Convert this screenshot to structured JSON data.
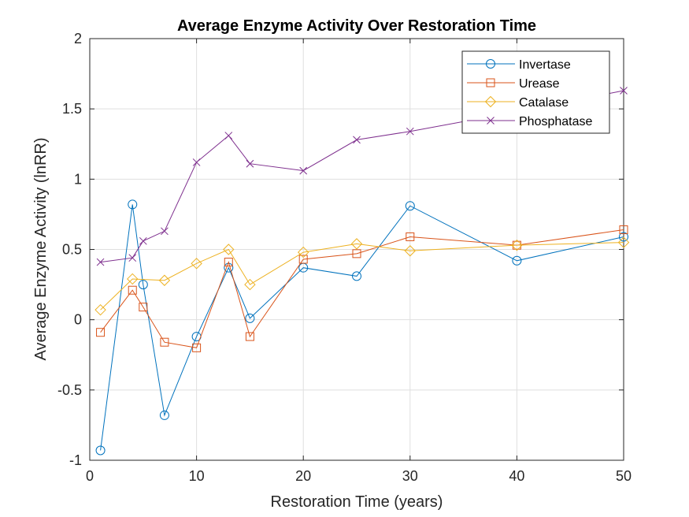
{
  "chart_data": {
    "type": "line",
    "title": "Average Enzyme Activity Over Restoration Time",
    "xlabel": "Restoration Time (years)",
    "ylabel": "Average Enzyme Activity (lnRR)",
    "xlim": [
      0,
      50
    ],
    "ylim": [
      -1,
      2
    ],
    "xticks": [
      0,
      10,
      20,
      30,
      40,
      50
    ],
    "xtick_labels": [
      "0",
      "10",
      "20",
      "30",
      "40",
      "50"
    ],
    "yticks": [
      -1,
      -0.5,
      0,
      0.5,
      1,
      1.5,
      2
    ],
    "ytick_labels": [
      "-1",
      "-0.5",
      "0",
      "0.5",
      "1",
      "1.5",
      "2"
    ],
    "grid": true,
    "legend_position": "top-right",
    "series": [
      {
        "name": "Invertase",
        "color": "#0072BD",
        "marker": "circle",
        "x": [
          1,
          4,
          5,
          7,
          10,
          13,
          15,
          20,
          25,
          30,
          40,
          50
        ],
        "y": [
          -0.93,
          0.82,
          0.25,
          -0.68,
          -0.12,
          0.37,
          0.01,
          0.37,
          0.31,
          0.81,
          0.42,
          0.59
        ]
      },
      {
        "name": "Urease",
        "color": "#D95319",
        "marker": "square",
        "x": [
          1,
          4,
          5,
          7,
          10,
          13,
          15,
          20,
          25,
          30,
          40,
          50
        ],
        "y": [
          -0.09,
          0.21,
          0.09,
          -0.16,
          -0.2,
          0.41,
          -0.12,
          0.43,
          0.47,
          0.59,
          0.53,
          0.64
        ]
      },
      {
        "name": "Catalase",
        "color": "#EDB120",
        "marker": "diamond",
        "x": [
          1,
          4,
          7,
          10,
          13,
          15,
          20,
          25,
          30,
          40,
          50
        ],
        "y": [
          0.07,
          0.29,
          0.28,
          0.4,
          0.5,
          0.25,
          0.48,
          0.54,
          0.49,
          0.53,
          0.55
        ]
      },
      {
        "name": "Phosphatase",
        "color": "#7E2F8E",
        "marker": "x",
        "x": [
          1,
          4,
          5,
          7,
          10,
          13,
          15,
          20,
          25,
          30,
          40,
          50
        ],
        "y": [
          0.41,
          0.44,
          0.56,
          0.63,
          1.12,
          1.31,
          1.11,
          1.06,
          1.28,
          1.34,
          1.48,
          1.63
        ]
      }
    ]
  }
}
